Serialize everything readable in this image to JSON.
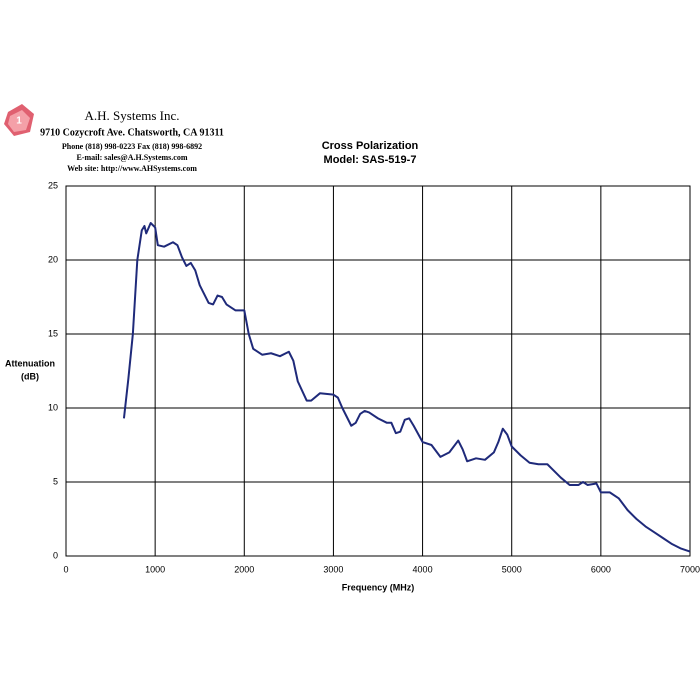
{
  "header": {
    "company": "A.H. Systems Inc.",
    "address": "9710 Cozycroft Ave. Chatsworth, CA 91311",
    "phone": "Phone (818) 998-0223 Fax (818) 998-6892",
    "email": "E-mail: sales@A.H.Systems.com",
    "web": "Web site: http://www.AHSystems.com"
  },
  "chart_data": {
    "type": "line",
    "title": "Cross Polarization",
    "subtitle": "Model: SAS-519-7",
    "x_label": "Frequency (MHz)",
    "y_label": [
      "Attenuation",
      "(dB)"
    ],
    "xlim": [
      0,
      7000
    ],
    "xticks": [
      0,
      1000,
      2000,
      3000,
      4000,
      5000,
      6000,
      7000
    ],
    "ylim": [
      0,
      25
    ],
    "yticks": [
      0,
      5,
      10,
      15,
      20,
      25
    ],
    "grid": true,
    "series": [
      {
        "color": "#1f2a7a",
        "x": [
          650,
          700,
          750,
          800,
          850,
          880,
          900,
          950,
          1000,
          1030,
          1100,
          1200,
          1250,
          1300,
          1350,
          1400,
          1450,
          1500,
          1600,
          1650,
          1700,
          1750,
          1800,
          1900,
          2000,
          2050,
          2100,
          2200,
          2300,
          2400,
          2500,
          2550,
          2600,
          2700,
          2750,
          2850,
          3000,
          3050,
          3100,
          3200,
          3250,
          3300,
          3350,
          3400,
          3500,
          3600,
          3650,
          3700,
          3750,
          3800,
          3850,
          3900,
          4000,
          4100,
          4200,
          4300,
          4400,
          4450,
          4500,
          4600,
          4700,
          4800,
          4850,
          4900,
          4950,
          5000,
          5100,
          5200,
          5300,
          5400,
          5450,
          5550,
          5650,
          5750,
          5800,
          5850,
          5950,
          6000,
          6100,
          6200,
          6300,
          6400,
          6500,
          6600,
          6700,
          6800,
          6900,
          7000
        ],
        "values": [
          9.3,
          12,
          15,
          20,
          22,
          22.3,
          21.8,
          22.5,
          22.2,
          21,
          20.9,
          21.2,
          21,
          20.2,
          19.6,
          19.8,
          19.3,
          18.3,
          17.1,
          17,
          17.6,
          17.5,
          17,
          16.6,
          16.6,
          15,
          14,
          13.6,
          13.7,
          13.5,
          13.8,
          13.2,
          11.8,
          10.5,
          10.5,
          11,
          10.9,
          10.7,
          10,
          8.8,
          9,
          9.6,
          9.8,
          9.7,
          9.3,
          9,
          9,
          8.3,
          8.4,
          9.2,
          9.3,
          8.8,
          7.7,
          7.5,
          6.7,
          7,
          7.8,
          7.2,
          6.4,
          6.6,
          6.5,
          7,
          7.7,
          8.6,
          8.2,
          7.4,
          6.8,
          6.3,
          6.2,
          6.2,
          5.9,
          5.3,
          4.8,
          4.8,
          5,
          4.8,
          4.9,
          4.3,
          4.3,
          3.9,
          3.1,
          2.5,
          2,
          1.6,
          1.2,
          0.8,
          0.5,
          0.3
        ]
      }
    ]
  }
}
